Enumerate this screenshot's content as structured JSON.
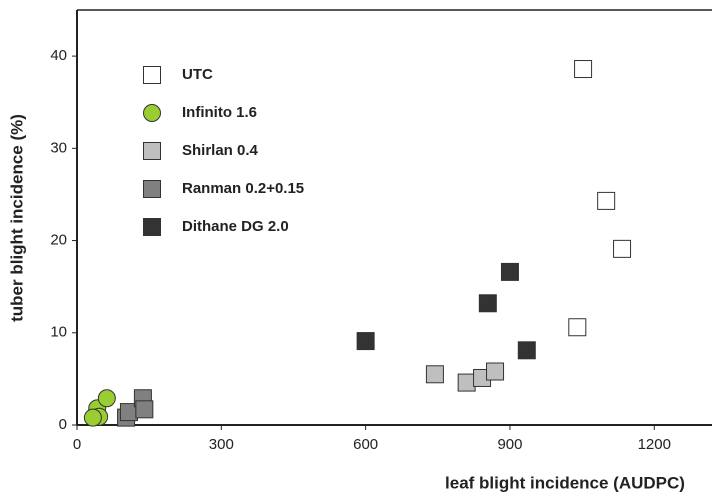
{
  "chart_data": {
    "type": "scatter",
    "xlabel": "leaf blight incidence (AUDPC)",
    "ylabel": "tuber blight incidence (%)",
    "xlim": [
      0,
      1320
    ],
    "ylim": [
      0,
      45
    ],
    "xticks": [
      0,
      300,
      600,
      900,
      1200
    ],
    "yticks": [
      0,
      10,
      20,
      30,
      40
    ],
    "legend": "upper left",
    "series": [
      {
        "name": "UTC",
        "color": "#ffffff",
        "marker": "square",
        "x": [
          1052,
          1100,
          1133,
          1040
        ],
        "values": [
          38.6,
          24.3,
          19.1,
          10.6
        ]
      },
      {
        "name": "Infinito 1.6",
        "color": "#9acd32",
        "marker": "circle",
        "x": [
          42,
          62,
          46,
          33
        ],
        "values": [
          1.8,
          2.9,
          0.9,
          0.8
        ]
      },
      {
        "name": "Shirlan 0.4",
        "color": "#bfbfbf",
        "marker": "square",
        "x": [
          744,
          810,
          842,
          869
        ],
        "values": [
          5.5,
          4.6,
          5.1,
          5.8
        ]
      },
      {
        "name": "Ranman 0.2+0.15",
        "color": "#808080",
        "marker": "square",
        "x": [
          102,
          108,
          137,
          140
        ],
        "values": [
          0.8,
          1.4,
          2.9,
          1.7
        ]
      },
      {
        "name": "Dithane DG 2.0",
        "color": "#333333",
        "marker": "square",
        "x": [
          600,
          854,
          900,
          935
        ],
        "values": [
          9.1,
          13.2,
          16.6,
          8.1
        ]
      }
    ]
  }
}
